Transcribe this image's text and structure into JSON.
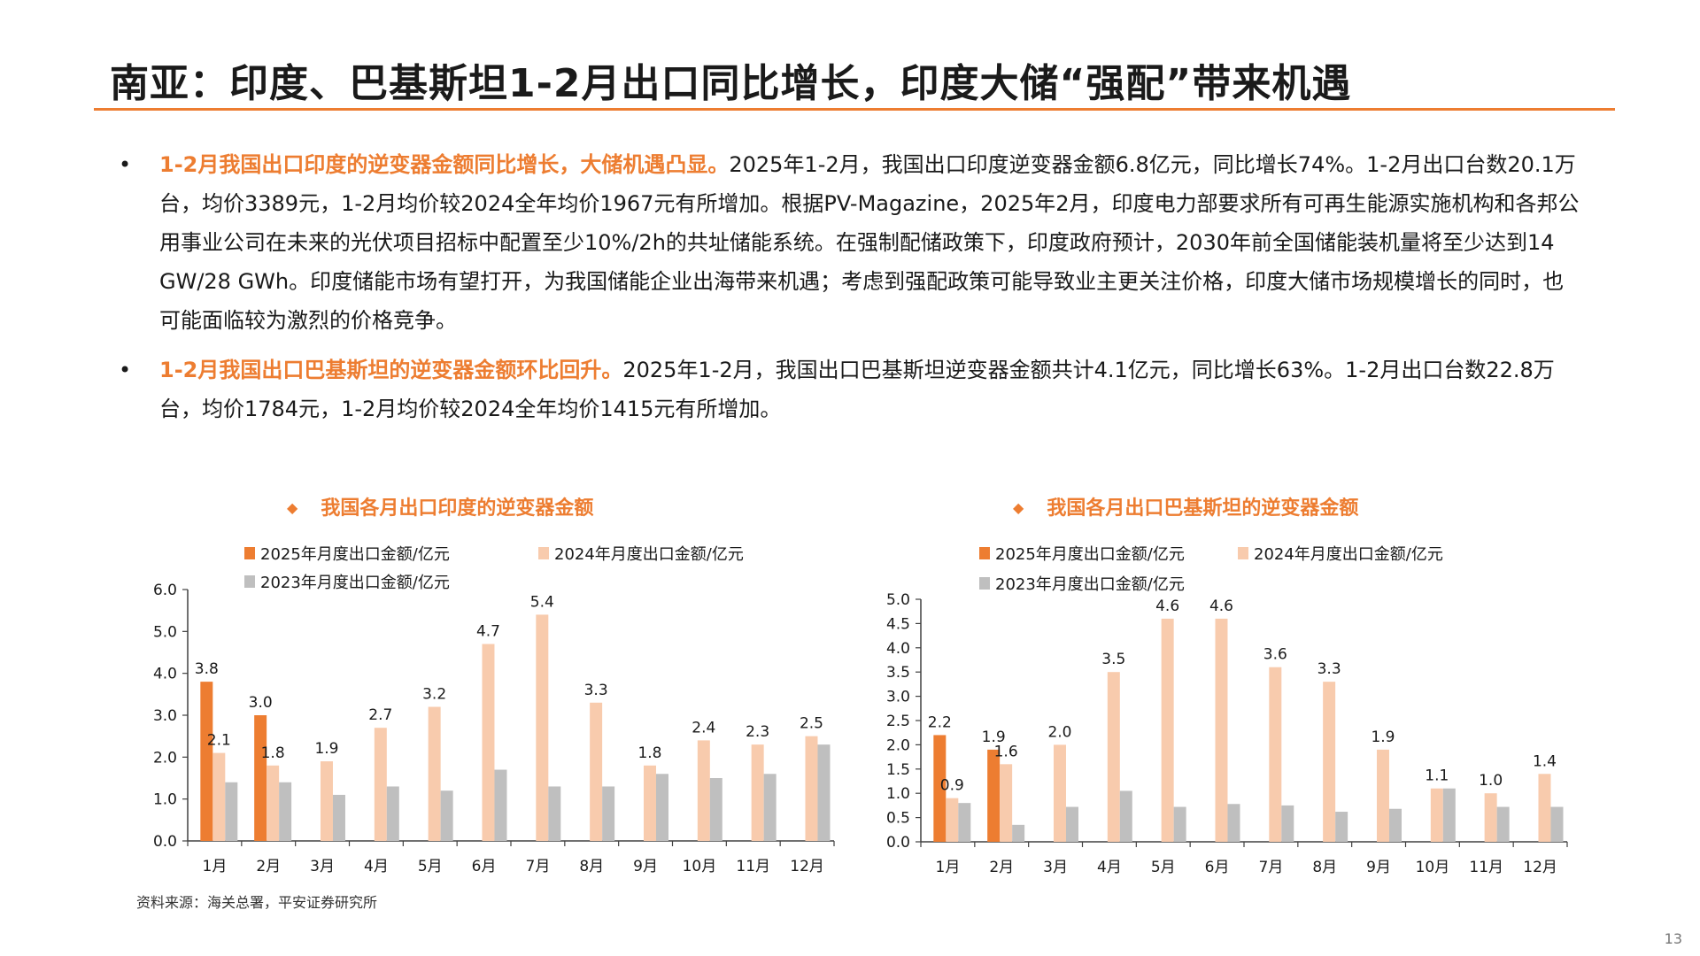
{
  "title": "南亚：印度、巴基斯坦1-2月出口同比增长，印度大储“强配”带来机遇",
  "bullets": [
    {
      "marker": "•",
      "highlight": "1-2月我国出口印度的逆变器金额同比增长，大储机遇凸显。",
      "text": "2025年1-2月，我国出口印度逆变器金额6.8亿元，同比增长74%。1-2月出口台数20.1万台，均价3389元，1-2月均价较2024全年均价1967元有所增加。根据PV-Magazine，2025年2月，印度电力部要求所有可再生能源实施机构和各邦公用事业公司在未来的光伏项目招标中配置至少10%/2h的共址储能系统。在强制配储政策下，印度政府预计，2030年前全国储能装机量将至少达到14 GW/28 GWh。印度储能市场有望打开，为我国储能企业出海带来机遇；考虑到强配政策可能导致业主更关注价格，印度大储市场规模增长的同时，也可能面临较为激烈的价格竞争。"
    },
    {
      "marker": "•",
      "highlight": "1-2月我国出口巴基斯坦的逆变器金额环比回升。",
      "text": "2025年1-2月，我国出口巴基斯坦逆变器金额共计4.1亿元，同比增长63%。1-2月出口台数22.8万台，均价1784元，1-2月均价较2024全年均价1415元有所增加。"
    }
  ],
  "chart_marker": "◆",
  "colors": {
    "s2025": "#ED7D31",
    "s2024": "#F8CBAD",
    "s2023": "#BFBFBF",
    "axis": "#404040"
  },
  "source": "资料来源：海关总署，平安证券研究所",
  "page_number": "13",
  "chart_data": [
    {
      "type": "bar",
      "title": "我国各月出口印度的逆变器金额",
      "categories": [
        "1月",
        "2月",
        "3月",
        "4月",
        "5月",
        "6月",
        "7月",
        "8月",
        "9月",
        "10月",
        "11月",
        "12月"
      ],
      "series": [
        {
          "name": "2025年月度出口金额/亿元",
          "values": [
            3.8,
            3.0,
            null,
            null,
            null,
            null,
            null,
            null,
            null,
            null,
            null,
            null
          ]
        },
        {
          "name": "2024年月度出口金额/亿元",
          "values": [
            2.1,
            1.8,
            1.9,
            2.7,
            3.2,
            4.7,
            5.4,
            3.3,
            1.8,
            2.4,
            2.3,
            2.5
          ]
        },
        {
          "name": "2023年月度出口金额/亿元",
          "values": [
            1.4,
            1.4,
            1.1,
            1.3,
            1.2,
            1.7,
            1.3,
            1.3,
            1.6,
            1.5,
            1.6,
            2.3
          ]
        }
      ],
      "labeled_series": [
        "2025年月度出口金额/亿元",
        "2024年月度出口金额/亿元"
      ],
      "ylim": [
        0,
        6
      ],
      "yticks": [
        "0.0",
        "1.0",
        "2.0",
        "3.0",
        "4.0",
        "5.0",
        "6.0"
      ],
      "grid": false,
      "legend": "top"
    },
    {
      "type": "bar",
      "title": "我国各月出口巴基斯坦的逆变器金额",
      "categories": [
        "1月",
        "2月",
        "3月",
        "4月",
        "5月",
        "6月",
        "7月",
        "8月",
        "9月",
        "10月",
        "11月",
        "12月"
      ],
      "series": [
        {
          "name": "2025年月度出口金额/亿元",
          "values": [
            2.2,
            1.9,
            null,
            null,
            null,
            null,
            null,
            null,
            null,
            null,
            null,
            null
          ]
        },
        {
          "name": "2024年月度出口金额/亿元",
          "values": [
            0.9,
            1.6,
            2.0,
            3.5,
            4.6,
            4.6,
            3.6,
            3.3,
            1.9,
            1.1,
            1.0,
            1.4
          ]
        },
        {
          "name": "2023年月度出口金额/亿元",
          "values": [
            0.8,
            0.35,
            0.72,
            1.05,
            0.72,
            0.78,
            0.75,
            0.62,
            0.68,
            1.1,
            0.72,
            0.72
          ]
        }
      ],
      "labeled_series": [
        "2025年月度出口金额/亿元",
        "2024年月度出口金额/亿元"
      ],
      "ylim": [
        0,
        5
      ],
      "yticks": [
        "0.0",
        "0.5",
        "1.0",
        "1.5",
        "2.0",
        "2.5",
        "3.0",
        "3.5",
        "4.0",
        "4.5",
        "5.0"
      ],
      "grid": false,
      "legend": "top"
    }
  ]
}
